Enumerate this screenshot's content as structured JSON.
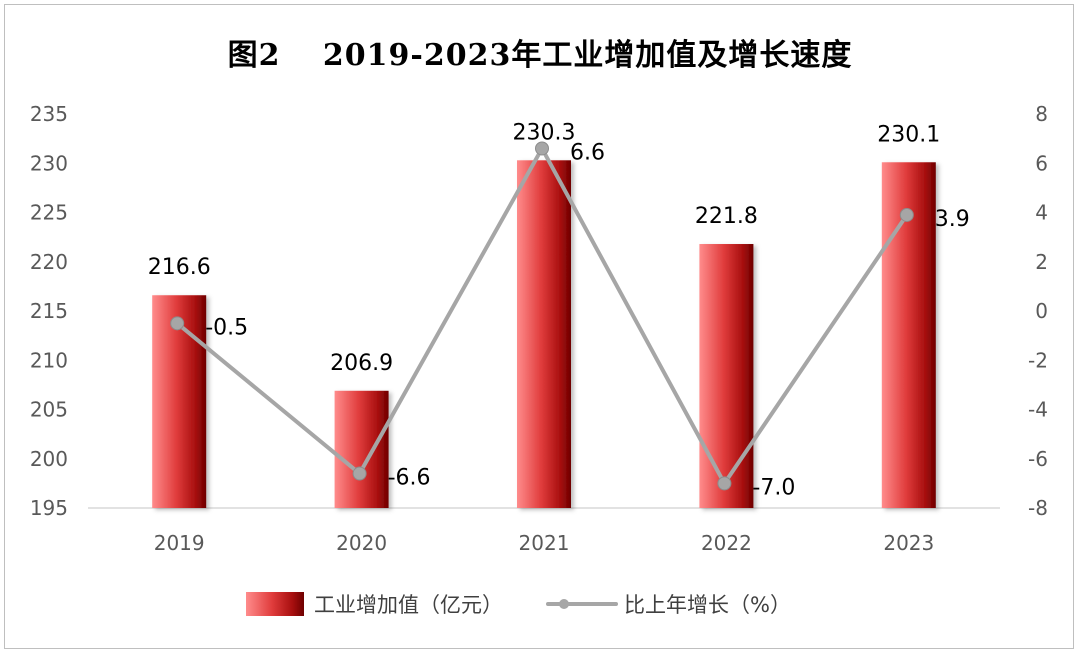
{
  "chart_data": {
    "type": "bar",
    "title": "图2　 2019-2023年工业增加值及增长速度",
    "categories": [
      "2019",
      "2020",
      "2021",
      "2022",
      "2023"
    ],
    "series": [
      {
        "name": "工业增加值（亿元）",
        "type": "bar",
        "axis": "left",
        "values": [
          216.6,
          206.9,
          230.3,
          221.8,
          230.1
        ],
        "labels": [
          "216.6",
          "206.9",
          "230.3",
          "221.8",
          "230.1"
        ],
        "color": "#c00000"
      },
      {
        "name": "比上年增长（%）",
        "type": "line",
        "axis": "right",
        "values": [
          -0.5,
          -6.6,
          6.6,
          -7.0,
          3.9
        ],
        "labels": [
          "-0.5",
          "-6.6",
          "6.6",
          "-7.0",
          "3.9"
        ],
        "color": "#a6a6a6"
      }
    ],
    "y_left": {
      "ylim": [
        195,
        235
      ],
      "ticks": [
        "195",
        "200",
        "205",
        "210",
        "215",
        "220",
        "225",
        "230",
        "235"
      ]
    },
    "y_right": {
      "ylim": [
        -8,
        8
      ],
      "ticks": [
        "-8",
        "-6",
        "-4",
        "-2",
        "0",
        "2",
        "4",
        "6",
        "8"
      ]
    },
    "grid": false,
    "legend": "bottom"
  }
}
